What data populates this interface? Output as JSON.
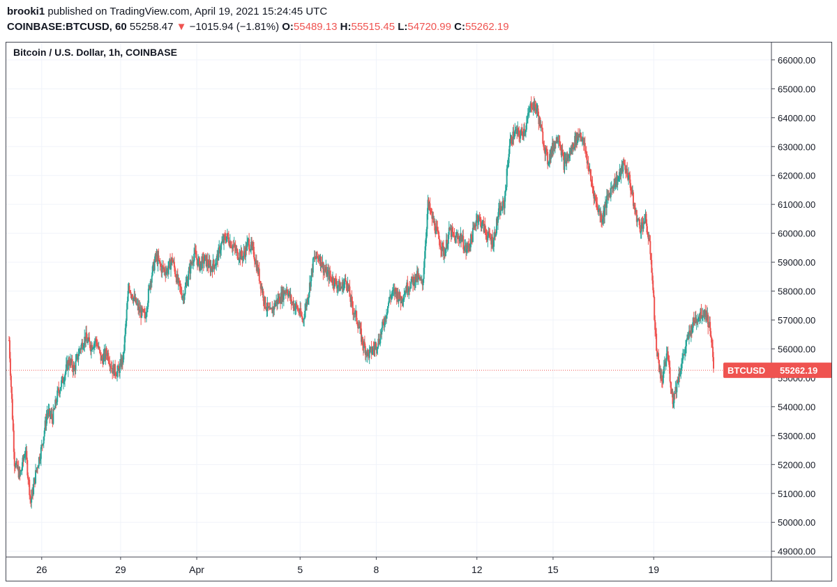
{
  "header": {
    "publisher": "brooki1",
    "published_text": "published on TradingView.com, April 19, 2021 15:24:45 UTC",
    "symbol": "COINBASE:BTCUSD, 60",
    "last": "55258.47",
    "down_icon": "triangle-down-icon",
    "change": "−1015.94 (−1.81%)",
    "o_label": "O:",
    "o_value": "55489.13",
    "h_label": "H:",
    "h_value": "55515.45",
    "l_label": "L:",
    "l_value": "54720.99",
    "c_label": "C:",
    "c_value": "55262.19"
  },
  "colors": {
    "up": "#26a69a",
    "down": "#ef5350",
    "grid": "#f0f3fa",
    "text": "#131722",
    "border": "#434651"
  },
  "chart_data": {
    "type": "candlestick",
    "title": "Bitcoin / U.S. Dollar, 1h, COINBASE",
    "y_ticks": [
      "66000.00",
      "65000.00",
      "64000.00",
      "63000.00",
      "62000.00",
      "61000.00",
      "60000.00",
      "59000.00",
      "58000.00",
      "57000.00",
      "56000.00",
      "55000.00",
      "54000.00",
      "53000.00",
      "52000.00",
      "51000.00",
      "50000.00",
      "49000.00"
    ],
    "ylim": [
      48800,
      66600
    ],
    "x_ticks": [
      "26",
      "29",
      "Apr",
      "5",
      "8",
      "12",
      "15",
      "19"
    ],
    "x_tick_index": [
      12,
      41,
      69,
      107,
      135,
      172,
      200,
      237
    ],
    "last_label": "BTCUSD",
    "last_value": "55262.19",
    "last_price": 55262.19,
    "grid": true,
    "series": [
      {
        "points": [
          [
            0,
            56300
          ],
          [
            2,
            52100
          ],
          [
            4,
            51600
          ],
          [
            6,
            52500
          ],
          [
            8,
            50700
          ],
          [
            10,
            51800
          ],
          [
            12,
            52600
          ],
          [
            14,
            53800
          ],
          [
            16,
            53600
          ],
          [
            18,
            54500
          ],
          [
            20,
            55000
          ],
          [
            22,
            55600
          ],
          [
            24,
            55300
          ],
          [
            26,
            56000
          ],
          [
            28,
            56400
          ],
          [
            30,
            56100
          ],
          [
            32,
            56300
          ],
          [
            34,
            55600
          ],
          [
            36,
            55900
          ],
          [
            38,
            55300
          ],
          [
            40,
            55200
          ],
          [
            42,
            55700
          ],
          [
            44,
            58200
          ],
          [
            46,
            57700
          ],
          [
            48,
            57300
          ],
          [
            50,
            57100
          ],
          [
            52,
            58400
          ],
          [
            54,
            59200
          ],
          [
            56,
            58800
          ],
          [
            58,
            58700
          ],
          [
            60,
            59100
          ],
          [
            62,
            58300
          ],
          [
            64,
            57800
          ],
          [
            66,
            58600
          ],
          [
            68,
            59300
          ],
          [
            70,
            58900
          ],
          [
            72,
            59100
          ],
          [
            74,
            58800
          ],
          [
            76,
            59000
          ],
          [
            78,
            59600
          ],
          [
            80,
            59900
          ],
          [
            82,
            59600
          ],
          [
            84,
            59300
          ],
          [
            86,
            59200
          ],
          [
            88,
            59700
          ],
          [
            90,
            59300
          ],
          [
            92,
            58500
          ],
          [
            94,
            57600
          ],
          [
            96,
            57200
          ],
          [
            98,
            57600
          ],
          [
            100,
            57800
          ],
          [
            102,
            58100
          ],
          [
            104,
            57600
          ],
          [
            106,
            57400
          ],
          [
            108,
            57000
          ],
          [
            110,
            57900
          ],
          [
            112,
            59100
          ],
          [
            114,
            59200
          ],
          [
            116,
            58700
          ],
          [
            118,
            58500
          ],
          [
            120,
            58300
          ],
          [
            122,
            58100
          ],
          [
            124,
            58400
          ],
          [
            126,
            57500
          ],
          [
            128,
            57000
          ],
          [
            130,
            56200
          ],
          [
            132,
            55800
          ],
          [
            134,
            56000
          ],
          [
            136,
            56300
          ],
          [
            138,
            57000
          ],
          [
            140,
            57800
          ],
          [
            142,
            58000
          ],
          [
            144,
            57700
          ],
          [
            146,
            58100
          ],
          [
            148,
            58300
          ],
          [
            150,
            58500
          ],
          [
            152,
            58200
          ],
          [
            154,
            61000
          ],
          [
            156,
            60400
          ],
          [
            158,
            59800
          ],
          [
            160,
            59300
          ],
          [
            162,
            60100
          ],
          [
            164,
            59800
          ],
          [
            166,
            59900
          ],
          [
            168,
            59400
          ],
          [
            170,
            59800
          ],
          [
            172,
            60600
          ],
          [
            174,
            60300
          ],
          [
            176,
            59900
          ],
          [
            178,
            59700
          ],
          [
            180,
            60700
          ],
          [
            182,
            61000
          ],
          [
            184,
            63100
          ],
          [
            186,
            63500
          ],
          [
            188,
            63400
          ],
          [
            190,
            63700
          ],
          [
            192,
            64500
          ],
          [
            194,
            64300
          ],
          [
            196,
            63400
          ],
          [
            198,
            62500
          ],
          [
            200,
            63000
          ],
          [
            202,
            63400
          ],
          [
            204,
            62400
          ],
          [
            206,
            62700
          ],
          [
            208,
            63200
          ],
          [
            210,
            63500
          ],
          [
            212,
            62800
          ],
          [
            214,
            61800
          ],
          [
            216,
            61000
          ],
          [
            218,
            60500
          ],
          [
            220,
            61200
          ],
          [
            222,
            61700
          ],
          [
            224,
            61900
          ],
          [
            226,
            62400
          ],
          [
            228,
            61900
          ],
          [
            230,
            60800
          ],
          [
            232,
            60200
          ],
          [
            234,
            60500
          ],
          [
            236,
            59200
          ],
          [
            238,
            56000
          ],
          [
            240,
            54800
          ],
          [
            242,
            55900
          ],
          [
            244,
            54200
          ],
          [
            246,
            55000
          ],
          [
            248,
            55800
          ],
          [
            250,
            56500
          ],
          [
            252,
            57000
          ],
          [
            254,
            57200
          ],
          [
            256,
            57300
          ],
          [
            258,
            56600
          ],
          [
            259,
            55262
          ]
        ]
      }
    ]
  }
}
